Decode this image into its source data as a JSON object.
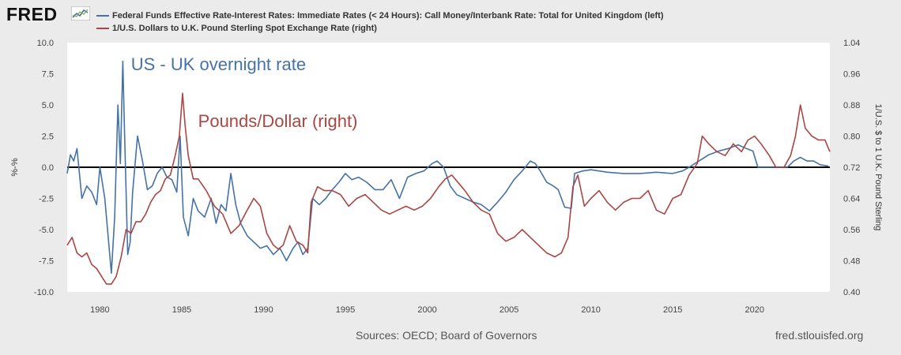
{
  "header": {
    "logo_text": "FRED",
    "logo_icon": "line-chart-icon"
  },
  "footer": {
    "sources": "Sources: OECD; Board of Governors",
    "site": "fred.stlouisfed.org"
  },
  "colors": {
    "series_left": "#4572a7",
    "series_right": "#aa4643",
    "background": "#ebebeb",
    "plot_background": "#ffffff",
    "zero_line": "#000000"
  },
  "chart_data": {
    "type": "line",
    "legend_placement": "top-left",
    "grid": false,
    "x_axis": {
      "range": [
        1978.0,
        2024.6
      ],
      "ticks": [
        "1980",
        "1985",
        "1990",
        "1995",
        "2000",
        "2005",
        "2010",
        "2015",
        "2020"
      ],
      "tick_values": [
        1980,
        1985,
        1990,
        1995,
        2000,
        2005,
        2010,
        2015,
        2020
      ]
    },
    "y_left": {
      "label": "%-%",
      "range": [
        -10.0,
        10.0
      ],
      "ticks": [
        "10.0",
        "7.5",
        "5.0",
        "2.5",
        "0.0",
        "-2.5",
        "-5.0",
        "-7.5",
        "-10.0"
      ],
      "tick_values": [
        10.0,
        7.5,
        5.0,
        2.5,
        0.0,
        -2.5,
        -5.0,
        -7.5,
        -10.0
      ]
    },
    "y_right": {
      "label": "1/U.S. $ to 1 U.K. Pound Sterling",
      "range": [
        0.4,
        1.04
      ],
      "ticks": [
        "1.04",
        "0.96",
        "0.88",
        "0.80",
        "0.72",
        "0.64",
        "0.56",
        "0.48",
        "0.40"
      ],
      "tick_values": [
        1.04,
        0.96,
        0.88,
        0.8,
        0.72,
        0.64,
        0.56,
        0.48,
        0.4
      ]
    },
    "annotations": [
      {
        "text": "US - UK overnight rate",
        "series": 0
      },
      {
        "text": "Pounds/Dollar (right)",
        "series": 1
      }
    ],
    "series": [
      {
        "name": "Federal Funds Effective Rate-Interest Rates: Immediate Rates (< 24 Hours): Call Money/Interbank Rate: Total for United Kingdom (left)",
        "axis": "left",
        "x": [
          1978.0,
          1978.2,
          1978.4,
          1978.6,
          1978.9,
          1979.2,
          1979.5,
          1979.8,
          1980.0,
          1980.3,
          1980.7,
          1980.9,
          1981.1,
          1981.25,
          1981.4,
          1981.5,
          1981.7,
          1981.85,
          1982.0,
          1982.3,
          1982.6,
          1982.9,
          1983.2,
          1983.5,
          1983.8,
          1984.1,
          1984.4,
          1984.7,
          1984.9,
          1985.1,
          1985.4,
          1985.7,
          1986.0,
          1986.4,
          1986.8,
          1987.1,
          1987.4,
          1987.7,
          1988.0,
          1988.3,
          1988.6,
          1989.0,
          1989.4,
          1989.8,
          1990.2,
          1990.6,
          1991.0,
          1991.4,
          1991.8,
          1992.1,
          1992.4,
          1992.7,
          1993.0,
          1993.4,
          1993.8,
          1994.2,
          1994.6,
          1995.0,
          1995.4,
          1995.8,
          1996.3,
          1996.8,
          1997.3,
          1997.8,
          1998.3,
          1998.8,
          1999.3,
          1999.8,
          2000.3,
          2000.6,
          2001.0,
          2001.4,
          2001.8,
          2002.3,
          2002.8,
          2003.3,
          2003.8,
          2004.3,
          2004.8,
          2005.3,
          2005.8,
          2006.3,
          2006.6,
          2006.9,
          2007.3,
          2007.7,
          2008.0,
          2008.4,
          2008.8,
          2009.0,
          2009.5,
          2010.0,
          2011.0,
          2012.0,
          2013.0,
          2014.0,
          2015.0,
          2015.6,
          2016.0,
          2016.6,
          2017.2,
          2017.8,
          2018.4,
          2019.0,
          2019.5,
          2019.9,
          2020.2,
          2020.6,
          2021.0,
          2021.6,
          2022.0,
          2022.4,
          2022.8,
          2023.2,
          2023.6,
          2024.0,
          2024.5
        ],
        "values": [
          -0.5,
          1.0,
          0.5,
          1.5,
          -2.5,
          -1.5,
          -2.0,
          -3.0,
          0.0,
          -2.5,
          -8.5,
          -4.0,
          5.0,
          0.3,
          8.5,
          3.0,
          -7.0,
          -6.0,
          -2.0,
          2.5,
          0.5,
          -1.8,
          -1.5,
          -0.5,
          0.0,
          -0.8,
          -1.0,
          -2.0,
          2.5,
          -4.0,
          -5.5,
          -2.5,
          -3.5,
          -4.0,
          -2.5,
          -4.5,
          -3.0,
          -3.5,
          -0.5,
          -3.0,
          -4.5,
          -5.5,
          -6.0,
          -6.5,
          -6.3,
          -7.0,
          -6.5,
          -7.5,
          -6.5,
          -6.0,
          -7.0,
          -6.5,
          -2.5,
          -3.0,
          -2.5,
          -1.8,
          -1.2,
          -0.5,
          -1.0,
          -0.8,
          -1.2,
          -1.8,
          -1.8,
          -1.0,
          -2.5,
          -0.8,
          -0.5,
          -0.3,
          0.3,
          0.5,
          0.0,
          -1.5,
          -2.2,
          -2.5,
          -2.8,
          -3.0,
          -3.5,
          -2.8,
          -2.0,
          -1.0,
          -0.3,
          0.5,
          0.3,
          -0.3,
          -1.2,
          -1.5,
          -1.8,
          -3.2,
          -3.3,
          -0.5,
          -0.3,
          -0.2,
          -0.4,
          -0.5,
          -0.5,
          -0.4,
          -0.5,
          -0.3,
          0.0,
          0.5,
          1.0,
          1.3,
          1.5,
          1.8,
          1.5,
          1.3,
          0.0,
          0.0,
          0.0,
          0.0,
          0.0,
          0.5,
          0.8,
          0.5,
          0.5,
          0.2,
          0.1
        ]
      },
      {
        "name": "1/U.S. Dollars to U.K. Pound Sterling Spot Exchange Rate (right)",
        "axis": "right",
        "x": [
          1978.0,
          1978.3,
          1978.6,
          1978.9,
          1979.2,
          1979.5,
          1979.8,
          1980.1,
          1980.4,
          1980.7,
          1981.0,
          1981.3,
          1981.6,
          1981.9,
          1982.2,
          1982.5,
          1982.8,
          1983.1,
          1983.4,
          1983.7,
          1984.0,
          1984.3,
          1984.6,
          1984.85,
          1985.05,
          1985.2,
          1985.4,
          1985.7,
          1986.0,
          1986.5,
          1987.0,
          1987.5,
          1988.0,
          1988.5,
          1989.0,
          1989.4,
          1989.8,
          1990.2,
          1990.6,
          1990.9,
          1991.2,
          1991.6,
          1992.0,
          1992.4,
          1992.7,
          1992.9,
          1993.3,
          1993.7,
          1994.2,
          1994.7,
          1995.2,
          1995.7,
          1996.2,
          1996.7,
          1997.2,
          1997.7,
          1998.2,
          1998.7,
          1999.2,
          1999.7,
          2000.2,
          2000.7,
          2001.1,
          2001.5,
          2001.9,
          2002.3,
          2002.8,
          2003.3,
          2003.8,
          2004.3,
          2004.8,
          2005.3,
          2005.8,
          2006.3,
          2006.8,
          2007.3,
          2007.8,
          2008.2,
          2008.6,
          2008.9,
          2009.2,
          2009.6,
          2010.0,
          2010.5,
          2011.0,
          2011.5,
          2012.0,
          2012.5,
          2013.0,
          2013.5,
          2014.0,
          2014.5,
          2015.0,
          2015.5,
          2016.0,
          2016.5,
          2016.8,
          2017.2,
          2017.7,
          2018.2,
          2018.7,
          2019.2,
          2019.6,
          2020.0,
          2020.4,
          2020.9,
          2021.3,
          2021.8,
          2022.2,
          2022.5,
          2022.8,
          2023.1,
          2023.5,
          2023.9,
          2024.3,
          2024.6
        ],
        "values": [
          0.52,
          0.54,
          0.5,
          0.49,
          0.5,
          0.47,
          0.46,
          0.44,
          0.42,
          0.42,
          0.44,
          0.49,
          0.56,
          0.55,
          0.58,
          0.58,
          0.6,
          0.63,
          0.65,
          0.66,
          0.69,
          0.7,
          0.75,
          0.8,
          0.91,
          0.83,
          0.75,
          0.69,
          0.69,
          0.66,
          0.62,
          0.6,
          0.55,
          0.57,
          0.61,
          0.64,
          0.62,
          0.55,
          0.52,
          0.51,
          0.52,
          0.57,
          0.53,
          0.52,
          0.5,
          0.63,
          0.67,
          0.66,
          0.66,
          0.65,
          0.62,
          0.64,
          0.65,
          0.63,
          0.61,
          0.6,
          0.61,
          0.62,
          0.61,
          0.62,
          0.64,
          0.67,
          0.69,
          0.7,
          0.68,
          0.66,
          0.63,
          0.61,
          0.6,
          0.55,
          0.53,
          0.54,
          0.56,
          0.54,
          0.52,
          0.5,
          0.49,
          0.5,
          0.54,
          0.67,
          0.7,
          0.62,
          0.64,
          0.66,
          0.63,
          0.61,
          0.63,
          0.64,
          0.64,
          0.66,
          0.61,
          0.6,
          0.64,
          0.65,
          0.7,
          0.73,
          0.8,
          0.78,
          0.76,
          0.75,
          0.78,
          0.76,
          0.79,
          0.8,
          0.78,
          0.75,
          0.72,
          0.72,
          0.75,
          0.8,
          0.88,
          0.82,
          0.8,
          0.79,
          0.79,
          0.76
        ]
      }
    ]
  }
}
